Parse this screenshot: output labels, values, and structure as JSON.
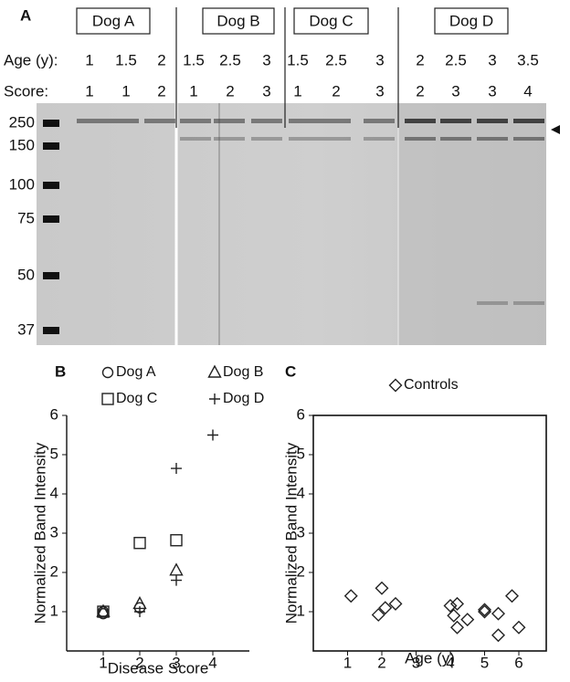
{
  "blot": {
    "panel_label": "A",
    "age_label": "Age (y):",
    "score_label": "Score:",
    "dogs": [
      {
        "name": "Dog A",
        "ages": [
          1,
          1.5,
          2
        ],
        "scores": [
          1,
          1,
          2
        ]
      },
      {
        "name": "Dog B",
        "ages": [
          1.5,
          2.5,
          3
        ],
        "scores": [
          1,
          2,
          3
        ]
      },
      {
        "name": "Dog C",
        "ages": [
          1.5,
          2.5,
          3
        ],
        "scores": [
          1,
          2,
          3
        ]
      },
      {
        "name": "Dog D",
        "ages": [
          2,
          2.5,
          3,
          3.5
        ],
        "scores": [
          2,
          3,
          3,
          4
        ]
      }
    ],
    "markers": [
      250,
      150,
      100,
      75,
      50,
      37
    ]
  },
  "chart_data": [
    {
      "type": "scatter",
      "panel_label": "B",
      "xlabel": "Disease Score",
      "ylabel": "Normalized Band Intensity",
      "xlim": [
        0,
        5
      ],
      "ylim": [
        0,
        6
      ],
      "xticks": [
        1,
        2,
        3,
        4
      ],
      "yticks": [
        1,
        2,
        3,
        4,
        5,
        6
      ],
      "box": false,
      "series": [
        {
          "name": "Dog A",
          "marker": "circle",
          "color": "#222",
          "x": [
            1,
            1,
            2
          ],
          "values": [
            1.0,
            0.95,
            1.1
          ]
        },
        {
          "name": "Dog B",
          "marker": "triangle",
          "color": "#222",
          "x": [
            1,
            2,
            3
          ],
          "values": [
            1.0,
            1.2,
            2.05
          ]
        },
        {
          "name": "Dog C",
          "marker": "square",
          "color": "#222",
          "x": [
            1,
            2,
            3
          ],
          "values": [
            1.0,
            2.75,
            2.82
          ]
        },
        {
          "name": "Dog D",
          "marker": "plus",
          "color": "#222",
          "x": [
            2,
            3,
            3,
            4
          ],
          "values": [
            1.0,
            1.8,
            4.65,
            5.5
          ]
        }
      ]
    },
    {
      "type": "scatter",
      "panel_label": "C",
      "xlabel": "Age (y)",
      "ylabel": "Normalized Band Intensity",
      "xlim": [
        0,
        6.8
      ],
      "ylim": [
        0,
        6
      ],
      "xticks": [
        1,
        2,
        3,
        4,
        5,
        6
      ],
      "yticks": [
        1,
        2,
        3,
        4,
        5,
        6
      ],
      "box": true,
      "series": [
        {
          "name": "Controls",
          "marker": "diamond",
          "color": "#222",
          "x": [
            1.1,
            1.9,
            2.0,
            2.1,
            2.4,
            4.0,
            4.1,
            4.2,
            4.2,
            4.5,
            5.0,
            5.0,
            5.4,
            5.4,
            5.8,
            6.0
          ],
          "values": [
            1.4,
            0.92,
            1.6,
            1.1,
            1.2,
            1.15,
            0.9,
            0.6,
            1.2,
            0.8,
            1.05,
            1.0,
            0.95,
            0.4,
            1.4,
            0.6
          ]
        }
      ]
    }
  ]
}
